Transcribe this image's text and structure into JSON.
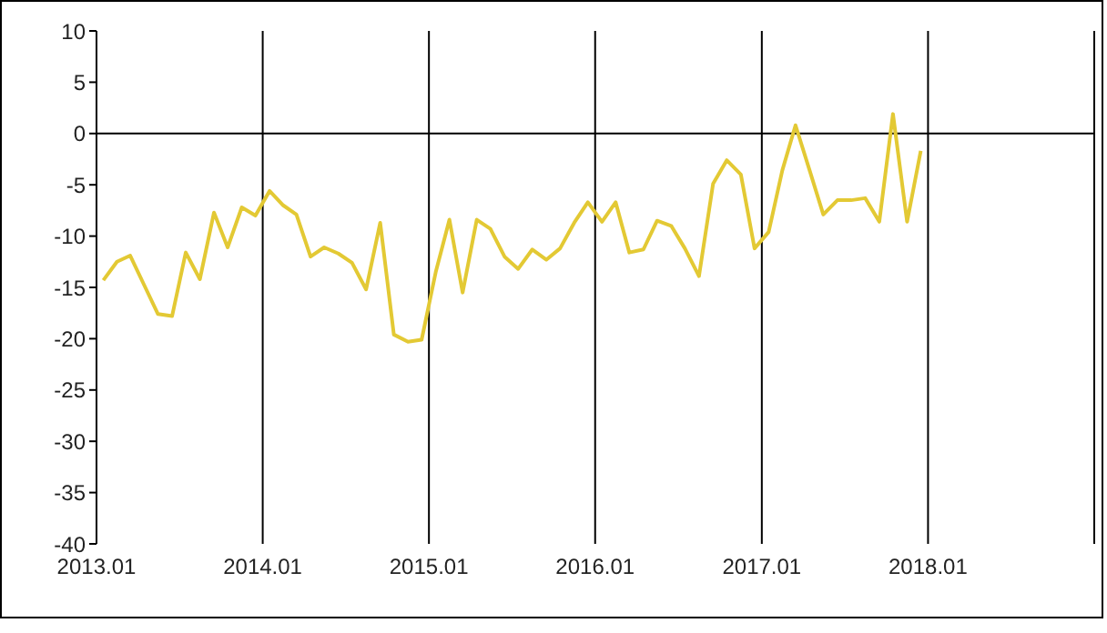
{
  "chart_data": {
    "type": "line",
    "x": [
      "2013-01-16",
      "2013-02-15",
      "2013-03-16",
      "2013-04-16",
      "2013-05-16",
      "2013-06-16",
      "2013-07-16",
      "2013-08-16",
      "2013-09-16",
      "2013-10-16",
      "2013-11-16",
      "2013-12-16",
      "2014-01-16",
      "2014-02-15",
      "2014-03-16",
      "2014-04-16",
      "2014-05-16",
      "2014-06-16",
      "2014-07-16",
      "2014-08-16",
      "2014-09-16",
      "2014-10-16",
      "2014-11-16",
      "2014-12-16",
      "2015-01-16",
      "2015-02-15",
      "2015-03-16",
      "2015-04-16",
      "2015-05-16",
      "2015-06-16",
      "2015-07-16",
      "2015-08-16",
      "2015-09-16",
      "2015-10-16",
      "2015-11-16",
      "2015-12-16",
      "2016-01-16",
      "2016-02-15",
      "2016-03-16",
      "2016-04-16",
      "2016-05-16",
      "2016-06-16",
      "2016-07-16",
      "2016-08-16",
      "2016-09-16",
      "2016-10-16",
      "2016-11-16",
      "2016-12-16",
      "2017-01-16",
      "2017-02-15",
      "2017-03-16",
      "2017-04-16",
      "2017-05-16",
      "2017-06-16",
      "2017-07-16",
      "2017-08-16",
      "2017-09-16",
      "2017-10-16",
      "2017-11-16",
      "2017-12-16"
    ],
    "series": [
      {
        "color": "#e3c934",
        "values": [
          -14.3,
          -12.5,
          -11.9,
          -14.8,
          -17.6,
          -17.8,
          -11.6,
          -14.2,
          -7.7,
          -11.1,
          -7.2,
          -8.0,
          -5.6,
          -7.0,
          -7.9,
          -12.0,
          -11.1,
          -11.7,
          -12.6,
          -15.2,
          -8.7,
          -19.6,
          -20.3,
          -20.1,
          -13.5,
          -8.4,
          -15.5,
          -8.4,
          -9.3,
          -12.0,
          -13.2,
          -11.3,
          -12.3,
          -11.2,
          -8.7,
          -6.7,
          -8.6,
          -6.7,
          -11.6,
          -11.3,
          -8.5,
          -9.0,
          -11.2,
          -13.9,
          -4.9,
          -2.6,
          -4.0,
          -11.2,
          -9.6,
          -3.6,
          0.8,
          -3.6,
          -7.9,
          -6.5,
          -6.5,
          -6.3,
          -8.6,
          1.9,
          -8.6,
          -1.7
        ]
      }
    ],
    "xlim": [
      "2013-01-01",
      "2019-01-01"
    ],
    "xticks": [
      {
        "value": "2013-01-01",
        "label": "2013.01"
      },
      {
        "value": "2014-01-01",
        "label": "2014.01"
      },
      {
        "value": "2015-01-01",
        "label": "2015.01"
      },
      {
        "value": "2016-01-01",
        "label": "2016.01"
      },
      {
        "value": "2017-01-01",
        "label": "2017.01"
      },
      {
        "value": "2018-01-01",
        "label": "2018.01"
      }
    ],
    "ylim": [
      -40,
      10
    ],
    "yticks": [
      -40,
      -35,
      -30,
      -25,
      -20,
      -15,
      -10,
      -5,
      0,
      5,
      10
    ],
    "grid": "x",
    "legend": false,
    "marker": "none",
    "line_style": "solid",
    "ref_lines": [
      {
        "axis": "y",
        "value": 0,
        "color": "#000000"
      }
    ]
  }
}
